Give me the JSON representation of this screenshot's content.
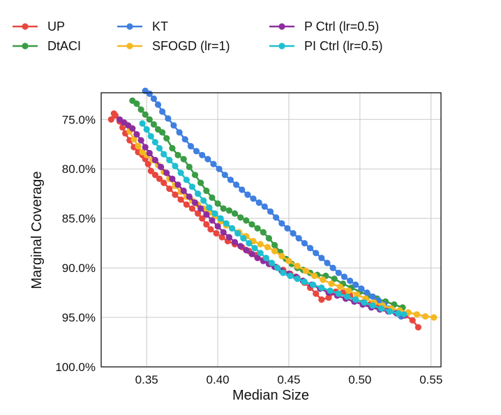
{
  "chart_data": {
    "type": "line",
    "xlabel": "Median Size",
    "ylabel": "Marginal Coverage",
    "xlim": [
      0.318,
      0.557
    ],
    "ylim": [
      72.3,
      100.0
    ],
    "y_inverted": true,
    "grid": true,
    "legend_placement": "top, outside plot, 3 columns",
    "xticks": [
      0.35,
      0.4,
      0.45,
      0.5,
      0.55
    ],
    "xtick_labels": [
      "0.35",
      "0.40",
      "0.45",
      "0.50",
      "0.55"
    ],
    "yticks": [
      75,
      80,
      85,
      90,
      95,
      100
    ],
    "ytick_labels": [
      "75.0%",
      "80.0%",
      "85.0%",
      "90.0%",
      "95.0%",
      "100.0%"
    ],
    "series": [
      {
        "name": "UP",
        "color": "#e8473e",
        "points": [
          [
            0.325,
            75.0
          ],
          [
            0.327,
            74.4
          ],
          [
            0.328,
            74.6
          ],
          [
            0.331,
            75.2
          ],
          [
            0.333,
            75.8
          ],
          [
            0.335,
            76.4
          ],
          [
            0.338,
            77.1
          ],
          [
            0.341,
            77.8
          ],
          [
            0.344,
            78.3
          ],
          [
            0.347,
            78.6
          ],
          [
            0.349,
            79.0
          ],
          [
            0.351,
            79.5
          ],
          [
            0.353,
            80.2
          ],
          [
            0.356,
            80.6
          ],
          [
            0.359,
            81.0
          ],
          [
            0.362,
            81.4
          ],
          [
            0.366,
            82.0
          ],
          [
            0.37,
            82.6
          ],
          [
            0.374,
            83.1
          ],
          [
            0.378,
            83.6
          ],
          [
            0.382,
            84.0
          ],
          [
            0.386,
            84.5
          ],
          [
            0.389,
            85.0
          ],
          [
            0.392,
            85.6
          ],
          [
            0.395,
            86.1
          ],
          [
            0.399,
            86.5
          ],
          [
            0.403,
            86.9
          ],
          [
            0.407,
            87.3
          ],
          [
            0.412,
            87.6
          ],
          [
            0.417,
            87.9
          ],
          [
            0.422,
            88.3
          ],
          [
            0.427,
            88.7
          ],
          [
            0.432,
            89.2
          ],
          [
            0.437,
            89.6
          ],
          [
            0.441,
            89.9
          ],
          [
            0.446,
            90.2
          ],
          [
            0.451,
            90.6
          ],
          [
            0.456,
            91.0
          ],
          [
            0.461,
            91.5
          ],
          [
            0.465,
            92.0
          ],
          [
            0.469,
            92.6
          ],
          [
            0.473,
            93.2
          ],
          [
            0.478,
            93.0
          ],
          [
            0.483,
            92.4
          ],
          [
            0.488,
            92.5
          ],
          [
            0.493,
            92.8
          ],
          [
            0.497,
            93.2
          ],
          [
            0.502,
            93.5
          ],
          [
            0.507,
            93.7
          ],
          [
            0.512,
            93.9
          ],
          [
            0.517,
            94.1
          ],
          [
            0.522,
            94.2
          ],
          [
            0.527,
            94.5
          ],
          [
            0.532,
            94.8
          ],
          [
            0.537,
            95.3
          ],
          [
            0.541,
            96.0
          ]
        ]
      },
      {
        "name": "DtACI",
        "color": "#3a9c45",
        "points": [
          [
            0.34,
            73.1
          ],
          [
            0.343,
            73.4
          ],
          [
            0.346,
            74.0
          ],
          [
            0.349,
            74.5
          ],
          [
            0.352,
            75.0
          ],
          [
            0.355,
            75.5
          ],
          [
            0.358,
            76.0
          ],
          [
            0.361,
            76.3
          ],
          [
            0.364,
            76.9
          ],
          [
            0.368,
            77.9
          ],
          [
            0.372,
            78.6
          ],
          [
            0.376,
            79.0
          ],
          [
            0.38,
            79.8
          ],
          [
            0.384,
            80.6
          ],
          [
            0.388,
            81.4
          ],
          [
            0.392,
            82.2
          ],
          [
            0.396,
            82.9
          ],
          [
            0.4,
            83.5
          ],
          [
            0.404,
            84.0
          ],
          [
            0.408,
            84.2
          ],
          [
            0.412,
            84.5
          ],
          [
            0.416,
            84.9
          ],
          [
            0.42,
            85.2
          ],
          [
            0.424,
            85.6
          ],
          [
            0.428,
            86.0
          ],
          [
            0.432,
            86.4
          ],
          [
            0.436,
            87.0
          ],
          [
            0.44,
            87.7
          ],
          [
            0.444,
            88.4
          ],
          [
            0.448,
            89.1
          ],
          [
            0.452,
            89.6
          ],
          [
            0.456,
            90.0
          ],
          [
            0.46,
            90.2
          ],
          [
            0.465,
            90.5
          ],
          [
            0.47,
            90.7
          ],
          [
            0.476,
            90.8
          ],
          [
            0.482,
            91.1
          ],
          [
            0.488,
            91.6
          ],
          [
            0.494,
            92.0
          ],
          [
            0.5,
            92.4
          ],
          [
            0.506,
            92.8
          ],
          [
            0.512,
            93.1
          ],
          [
            0.518,
            93.4
          ],
          [
            0.524,
            93.7
          ],
          [
            0.53,
            94.0
          ]
        ]
      },
      {
        "name": "KT",
        "color": "#3f7fe0",
        "points": [
          [
            0.349,
            72.1
          ],
          [
            0.352,
            72.4
          ],
          [
            0.355,
            72.9
          ],
          [
            0.358,
            73.5
          ],
          [
            0.361,
            74.2
          ],
          [
            0.365,
            74.9
          ],
          [
            0.369,
            75.6
          ],
          [
            0.373,
            76.3
          ],
          [
            0.377,
            77.0
          ],
          [
            0.381,
            77.7
          ],
          [
            0.385,
            78.2
          ],
          [
            0.389,
            78.6
          ],
          [
            0.393,
            79.0
          ],
          [
            0.397,
            79.5
          ],
          [
            0.401,
            80.0
          ],
          [
            0.405,
            80.6
          ],
          [
            0.409,
            81.1
          ],
          [
            0.413,
            81.6
          ],
          [
            0.417,
            82.1
          ],
          [
            0.421,
            82.6
          ],
          [
            0.425,
            83.0
          ],
          [
            0.429,
            83.4
          ],
          [
            0.433,
            83.8
          ],
          [
            0.437,
            84.3
          ],
          [
            0.441,
            84.9
          ],
          [
            0.445,
            85.5
          ],
          [
            0.449,
            86.0
          ],
          [
            0.453,
            86.5
          ],
          [
            0.457,
            87.0
          ],
          [
            0.461,
            87.5
          ],
          [
            0.465,
            88.0
          ],
          [
            0.469,
            88.5
          ],
          [
            0.473,
            89.0
          ],
          [
            0.477,
            89.5
          ],
          [
            0.481,
            90.0
          ],
          [
            0.485,
            90.5
          ],
          [
            0.489,
            90.9
          ],
          [
            0.493,
            91.3
          ],
          [
            0.497,
            91.7
          ],
          [
            0.501,
            92.1
          ],
          [
            0.505,
            92.5
          ],
          [
            0.509,
            92.9
          ],
          [
            0.513,
            93.3
          ],
          [
            0.517,
            93.7
          ],
          [
            0.521,
            94.1
          ],
          [
            0.525,
            94.5
          ],
          [
            0.529,
            94.9
          ]
        ]
      },
      {
        "name": "SFOGD (lr=1)",
        "color": "#f5b822",
        "points": [
          [
            0.335,
            75.4
          ],
          [
            0.338,
            76.2
          ],
          [
            0.341,
            77.0
          ],
          [
            0.344,
            77.7
          ],
          [
            0.347,
            78.3
          ],
          [
            0.35,
            78.6
          ],
          [
            0.354,
            79.1
          ],
          [
            0.358,
            79.6
          ],
          [
            0.362,
            80.3
          ],
          [
            0.366,
            81.0
          ],
          [
            0.37,
            81.7
          ],
          [
            0.374,
            82.3
          ],
          [
            0.378,
            82.8
          ],
          [
            0.382,
            83.2
          ],
          [
            0.386,
            83.6
          ],
          [
            0.39,
            84.0
          ],
          [
            0.394,
            84.4
          ],
          [
            0.398,
            84.8
          ],
          [
            0.402,
            85.3
          ],
          [
            0.406,
            85.7
          ],
          [
            0.41,
            86.0
          ],
          [
            0.415,
            86.4
          ],
          [
            0.42,
            86.8
          ],
          [
            0.425,
            87.3
          ],
          [
            0.43,
            87.6
          ],
          [
            0.435,
            87.9
          ],
          [
            0.44,
            88.3
          ],
          [
            0.445,
            88.8
          ],
          [
            0.45,
            89.3
          ],
          [
            0.456,
            89.8
          ],
          [
            0.462,
            90.3
          ],
          [
            0.468,
            90.8
          ],
          [
            0.474,
            91.2
          ],
          [
            0.48,
            91.6
          ],
          [
            0.486,
            91.9
          ],
          [
            0.492,
            92.3
          ],
          [
            0.498,
            92.7
          ],
          [
            0.504,
            93.1
          ],
          [
            0.51,
            93.5
          ],
          [
            0.516,
            93.8
          ],
          [
            0.522,
            94.1
          ],
          [
            0.528,
            94.3
          ],
          [
            0.534,
            94.5
          ],
          [
            0.54,
            94.7
          ],
          [
            0.546,
            94.9
          ],
          [
            0.552,
            95.0
          ]
        ]
      },
      {
        "name": "P Ctrl (lr=0.5)",
        "color": "#8e2e9e",
        "points": [
          [
            0.331,
            75.0
          ],
          [
            0.334,
            75.3
          ],
          [
            0.337,
            75.6
          ],
          [
            0.34,
            75.9
          ],
          [
            0.343,
            76.5
          ],
          [
            0.346,
            77.1
          ],
          [
            0.349,
            77.8
          ],
          [
            0.352,
            78.4
          ],
          [
            0.356,
            79.1
          ],
          [
            0.36,
            79.8
          ],
          [
            0.364,
            80.4
          ],
          [
            0.368,
            81.0
          ],
          [
            0.372,
            81.6
          ],
          [
            0.376,
            82.2
          ],
          [
            0.38,
            82.8
          ],
          [
            0.384,
            83.4
          ],
          [
            0.388,
            84.0
          ],
          [
            0.392,
            84.6
          ],
          [
            0.396,
            85.2
          ],
          [
            0.4,
            85.8
          ],
          [
            0.404,
            86.4
          ],
          [
            0.408,
            86.9
          ],
          [
            0.412,
            87.4
          ],
          [
            0.416,
            87.8
          ],
          [
            0.42,
            88.2
          ],
          [
            0.424,
            88.6
          ],
          [
            0.428,
            89.0
          ],
          [
            0.432,
            89.3
          ],
          [
            0.436,
            89.6
          ],
          [
            0.44,
            89.9
          ],
          [
            0.445,
            90.3
          ],
          [
            0.45,
            90.6
          ],
          [
            0.455,
            90.9
          ],
          [
            0.46,
            91.3
          ],
          [
            0.466,
            91.7
          ],
          [
            0.472,
            92.1
          ],
          [
            0.478,
            92.5
          ],
          [
            0.484,
            92.8
          ],
          [
            0.49,
            93.1
          ],
          [
            0.496,
            93.4
          ],
          [
            0.502,
            93.7
          ],
          [
            0.508,
            94.0
          ],
          [
            0.514,
            94.2
          ],
          [
            0.52,
            94.4
          ],
          [
            0.526,
            94.6
          ],
          [
            0.531,
            94.8
          ]
        ]
      },
      {
        "name": "PI Ctrl (lr=0.5)",
        "color": "#1fbfcf",
        "points": [
          [
            0.347,
            75.4
          ],
          [
            0.35,
            76.0
          ],
          [
            0.353,
            76.7
          ],
          [
            0.356,
            77.3
          ],
          [
            0.359,
            77.9
          ],
          [
            0.362,
            78.5
          ],
          [
            0.366,
            79.1
          ],
          [
            0.37,
            79.7
          ],
          [
            0.374,
            80.4
          ],
          [
            0.378,
            81.1
          ],
          [
            0.382,
            81.8
          ],
          [
            0.386,
            82.5
          ],
          [
            0.39,
            83.2
          ],
          [
            0.394,
            83.9
          ],
          [
            0.398,
            84.5
          ],
          [
            0.402,
            85.0
          ],
          [
            0.406,
            85.5
          ],
          [
            0.41,
            86.0
          ],
          [
            0.414,
            86.5
          ],
          [
            0.418,
            87.0
          ],
          [
            0.422,
            87.5
          ],
          [
            0.426,
            88.0
          ],
          [
            0.43,
            88.5
          ],
          [
            0.434,
            89.0
          ],
          [
            0.438,
            89.5
          ],
          [
            0.442,
            90.0
          ],
          [
            0.446,
            90.5
          ],
          [
            0.451,
            90.8
          ],
          [
            0.456,
            91.1
          ],
          [
            0.461,
            91.4
          ],
          [
            0.467,
            91.7
          ],
          [
            0.473,
            92.0
          ],
          [
            0.479,
            92.3
          ],
          [
            0.485,
            92.6
          ],
          [
            0.491,
            92.9
          ],
          [
            0.497,
            93.2
          ],
          [
            0.503,
            93.5
          ],
          [
            0.509,
            93.8
          ],
          [
            0.515,
            94.1
          ],
          [
            0.521,
            94.4
          ],
          [
            0.527,
            94.6
          ],
          [
            0.531,
            94.7
          ]
        ]
      }
    ]
  }
}
